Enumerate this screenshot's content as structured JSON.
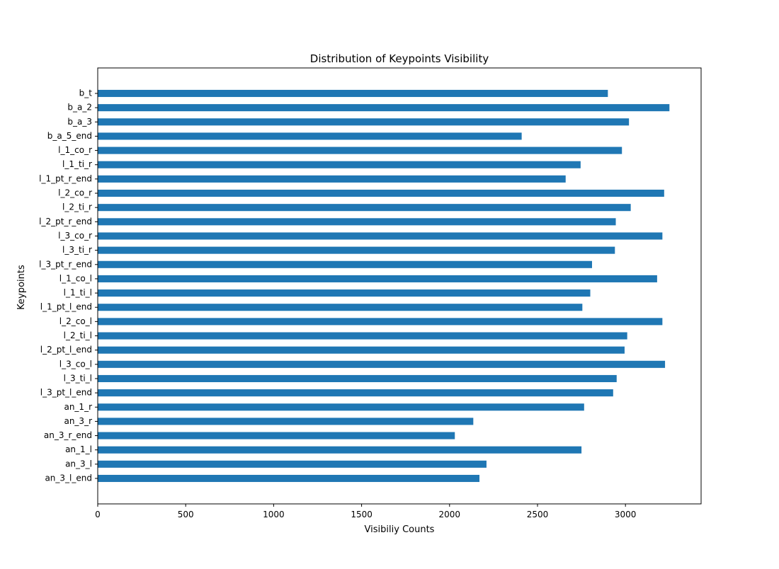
{
  "chart_data": {
    "type": "bar",
    "orientation": "horizontal",
    "title": "Distribution of Keypoints Visibility",
    "xlabel": "Visibiliy Counts",
    "ylabel": "Keypoints",
    "xlim": [
      0,
      3430
    ],
    "xticks": [
      0,
      500,
      1000,
      1500,
      2000,
      2500,
      3000
    ],
    "grid": false,
    "bar_color": "#1f77b4",
    "categories": [
      "b_t",
      "b_a_2",
      "b_a_3",
      "b_a_5_end",
      "l_1_co_r",
      "l_1_ti_r",
      "l_1_pt_r_end",
      "l_2_co_r",
      "l_2_ti_r",
      "l_2_pt_r_end",
      "l_3_co_r",
      "l_3_ti_r",
      "l_3_pt_r_end",
      "l_1_co_l",
      "l_1_ti_l",
      "l_1_pt_l_end",
      "l_2_co_l",
      "l_2_ti_l",
      "l_2_pt_l_end",
      "l_3_co_l",
      "l_3_ti_l",
      "l_3_pt_l_end",
      "an_1_r",
      "an_3_r",
      "an_3_r_end",
      "an_1_l",
      "an_3_l",
      "an_3_l_end"
    ],
    "values": [
      2900,
      3250,
      3020,
      2410,
      2980,
      2745,
      2660,
      3220,
      3030,
      2945,
      3210,
      2940,
      2810,
      3180,
      2800,
      2755,
      3210,
      3010,
      2995,
      3225,
      2950,
      2930,
      2765,
      2135,
      2030,
      2750,
      2210,
      2170
    ]
  }
}
